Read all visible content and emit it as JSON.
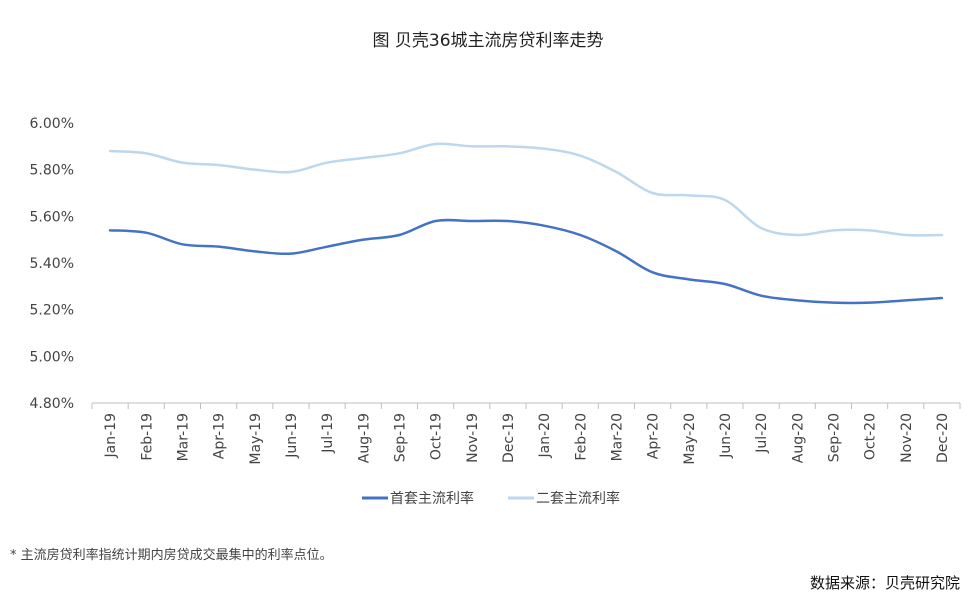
{
  "chart_data": {
    "type": "line",
    "title": "图 贝壳36城主流房贷利率走势",
    "categories": [
      "Jan-19",
      "Feb-19",
      "Mar-19",
      "Apr-19",
      "May-19",
      "Jun-19",
      "Jul-19",
      "Aug-19",
      "Sep-19",
      "Oct-19",
      "Nov-19",
      "Dec-19",
      "Jan-20",
      "Feb-20",
      "Mar-20",
      "Apr-20",
      "May-20",
      "Jun-20",
      "Jul-20",
      "Aug-20",
      "Sep-20",
      "Oct-20",
      "Nov-20",
      "Dec-20"
    ],
    "ylim": [
      4.8,
      6.0
    ],
    "yticks": [
      4.8,
      5.0,
      5.2,
      5.4,
      5.6,
      5.8,
      6.0
    ],
    "ytick_labels": [
      "4.80%",
      "5.00%",
      "5.20%",
      "5.40%",
      "5.60%",
      "5.80%",
      "6.00%"
    ],
    "y_unit": "%",
    "series": [
      {
        "name": "首套主流利率",
        "color": "#4472C4",
        "values": [
          5.54,
          5.53,
          5.48,
          5.47,
          5.45,
          5.44,
          5.47,
          5.5,
          5.52,
          5.58,
          5.58,
          5.58,
          5.56,
          5.52,
          5.45,
          5.36,
          5.33,
          5.31,
          5.26,
          5.24,
          5.23,
          5.23,
          5.24,
          5.25
        ]
      },
      {
        "name": "二套主流利率",
        "color": "#BDD7EE",
        "values": [
          5.88,
          5.87,
          5.83,
          5.82,
          5.8,
          5.79,
          5.83,
          5.85,
          5.87,
          5.91,
          5.9,
          5.9,
          5.89,
          5.86,
          5.79,
          5.7,
          5.69,
          5.67,
          5.55,
          5.52,
          5.54,
          5.54,
          5.52,
          5.52
        ]
      }
    ],
    "legend_position": "bottom",
    "grid": false
  },
  "footnote": "* 主流房贷利率指统计期内房贷成交最集中的利率点位。",
  "source": "数据来源：贝壳研究院"
}
